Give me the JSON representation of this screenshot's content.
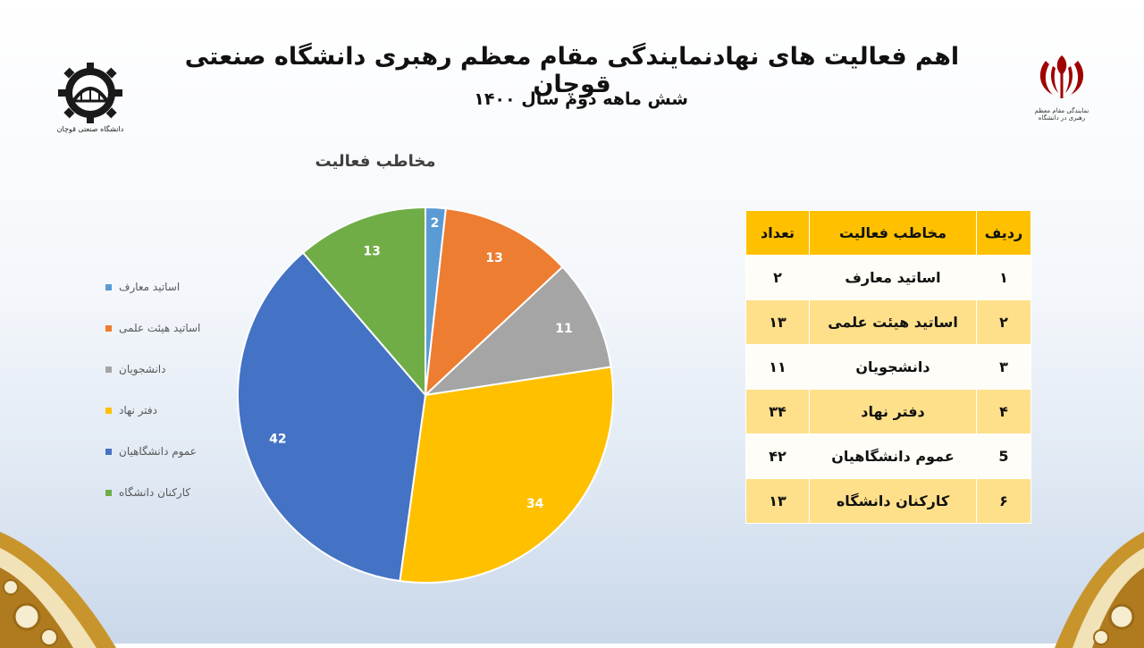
{
  "header": {
    "title": "اهم فعالیت های نهادنمایندگی مقام معظم رهبری دانشگاه صنعتی قوچان",
    "subtitle": "شش ماهه دوم سال ۱۴۰۰",
    "left_logo_text": "دانشگاه صنعتی قوچان",
    "right_logo_text": "نمایندگی مقام معظم رهبری در دانشگاه"
  },
  "chart_data": {
    "type": "pie",
    "title": "مخاطب فعالیت",
    "categories": [
      "اساتید معارف",
      "اساتید هیئت علمی",
      "دانشجویان",
      "دفتر نهاد",
      "عموم دانشگاهیان",
      "کارکنان دانشگاه"
    ],
    "values": [
      2,
      13,
      11,
      34,
      42,
      13
    ],
    "colors": [
      "#5b9bd5",
      "#ed7d31",
      "#a5a5a5",
      "#ffc000",
      "#4472c4",
      "#70ad47"
    ],
    "legend_position": "left",
    "data_labels": true
  },
  "table": {
    "headers": {
      "row": "ردیف",
      "audience": "مخاطب فعالیت",
      "count": "تعداد"
    },
    "rows": [
      {
        "num": "۱",
        "name": "اساتید معارف",
        "count": "۲"
      },
      {
        "num": "۲",
        "name": "اساتید هیئت علمی",
        "count": "۱۳"
      },
      {
        "num": "۳",
        "name": "دانشجویان",
        "count": "۱۱"
      },
      {
        "num": "۴",
        "name": "دفتر نهاد",
        "count": "۳۴"
      },
      {
        "num": "5",
        "name": "عموم دانشگاهیان",
        "count": "۴۲"
      },
      {
        "num": "۶",
        "name": "کارکنان دانشگاه",
        "count": "۱۳"
      }
    ],
    "header_color": "#ffc000",
    "alt_row_color": "#ffe08a"
  }
}
